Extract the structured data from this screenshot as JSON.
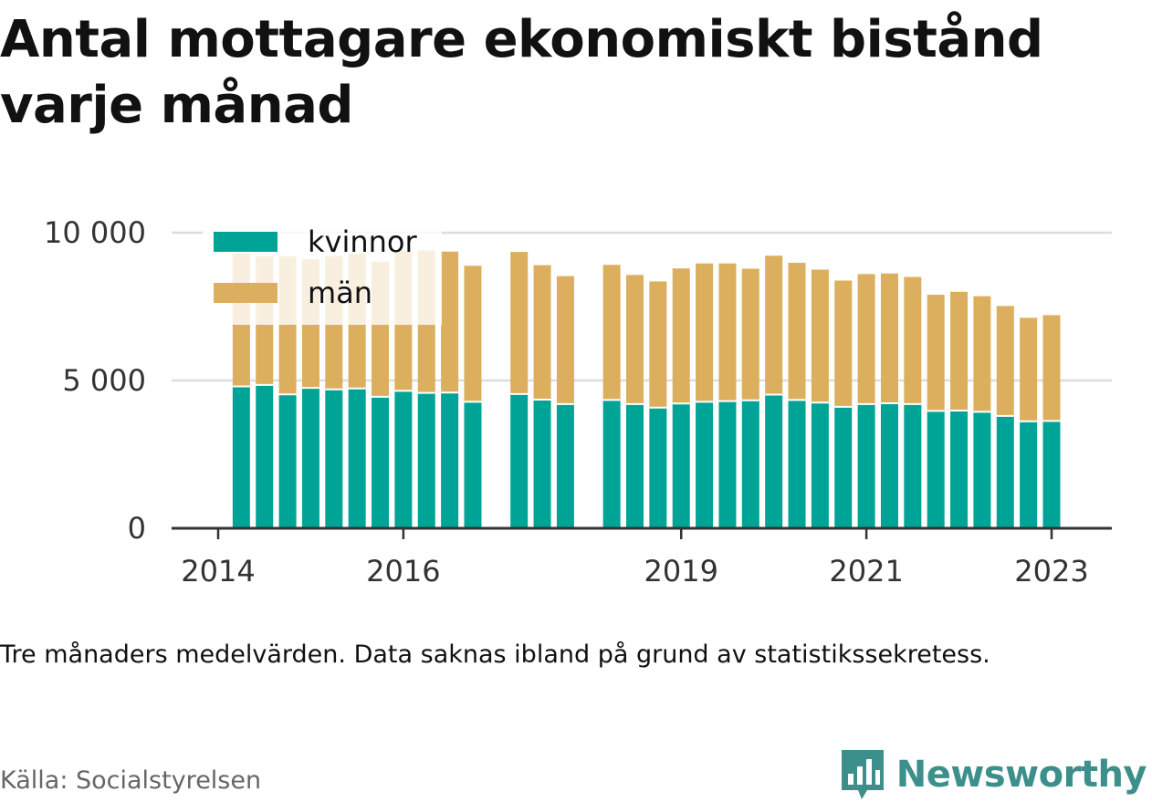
{
  "title": "Antal mottagare ekonomiskt bistånd varje månad",
  "note": "Tre månaders medelvärden. Data saknas ibland på grund av statistikssekretess.",
  "source": "Källa: Socialstyrelsen",
  "brand": {
    "name": "Newsworthy",
    "logo_icon": "bar-chart-speech-bubble-icon"
  },
  "colors": {
    "kvinnor": "#00a497",
    "man": "#dbaf5e",
    "grid": "#dddddd",
    "axis": "#333333"
  },
  "chart_data": {
    "type": "bar",
    "stacked": true,
    "x_unit": "year",
    "ylim": [
      0,
      10000
    ],
    "yticks": [
      {
        "value": 0,
        "label": "0"
      },
      {
        "value": 5000,
        "label": "5 000"
      },
      {
        "value": 10000,
        "label": "10 000"
      }
    ],
    "xticks": [
      {
        "value": 2014.0,
        "label": "2014"
      },
      {
        "value": 2016.0,
        "label": "2016"
      },
      {
        "value": 2019.0,
        "label": "2019"
      },
      {
        "value": 2021.0,
        "label": "2021"
      },
      {
        "value": 2023.0,
        "label": "2023"
      }
    ],
    "legend_position": "top-left",
    "grid": true,
    "x": [
      2014.25,
      2014.5,
      2014.75,
      2015.0,
      2015.25,
      2015.5,
      2015.75,
      2016.0,
      2016.25,
      2016.5,
      2016.75,
      2017.25,
      2017.5,
      2017.75,
      2018.25,
      2018.5,
      2018.75,
      2019.0,
      2019.25,
      2019.5,
      2019.75,
      2020.0,
      2020.25,
      2020.5,
      2020.75,
      2021.0,
      2021.25,
      2021.5,
      2021.75,
      2022.0,
      2022.25,
      2022.5,
      2022.75,
      2023.0
    ],
    "series": [
      {
        "name": "kvinnor",
        "color_key": "kvinnor",
        "values": [
          4800,
          4850,
          4530,
          4750,
          4700,
          4730,
          4450,
          4650,
          4580,
          4590,
          4280,
          4540,
          4350,
          4200,
          4340,
          4200,
          4080,
          4220,
          4280,
          4300,
          4330,
          4520,
          4340,
          4250,
          4110,
          4200,
          4230,
          4200,
          3970,
          3980,
          3940,
          3800,
          3620,
          3630
        ]
      },
      {
        "name": "män",
        "color_key": "man",
        "values": [
          4500,
          4350,
          4670,
          4350,
          4500,
          4550,
          4570,
          4730,
          4820,
          4770,
          4600,
          4810,
          4550,
          4330,
          4570,
          4370,
          4270,
          4570,
          4680,
          4660,
          4450,
          4700,
          4640,
          4500,
          4270,
          4400,
          4390,
          4300,
          3930,
          4020,
          3910,
          3720,
          3500,
          3580
        ]
      }
    ]
  }
}
